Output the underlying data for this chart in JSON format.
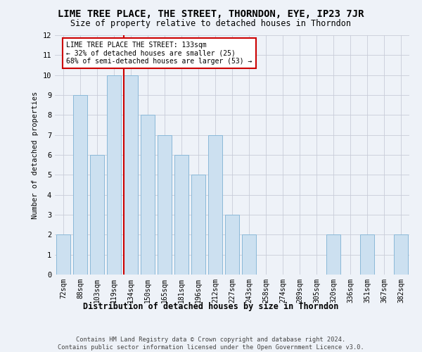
{
  "title": "LIME TREE PLACE, THE STREET, THORNDON, EYE, IP23 7JR",
  "subtitle": "Size of property relative to detached houses in Thorndon",
  "xlabel": "Distribution of detached houses by size in Thorndon",
  "ylabel": "Number of detached properties",
  "categories": [
    "72sqm",
    "88sqm",
    "103sqm",
    "119sqm",
    "134sqm",
    "150sqm",
    "165sqm",
    "181sqm",
    "196sqm",
    "212sqm",
    "227sqm",
    "243sqm",
    "258sqm",
    "274sqm",
    "289sqm",
    "305sqm",
    "320sqm",
    "336sqm",
    "351sqm",
    "367sqm",
    "382sqm"
  ],
  "values": [
    2,
    9,
    6,
    10,
    10,
    8,
    7,
    6,
    5,
    7,
    3,
    2,
    0,
    0,
    0,
    0,
    2,
    0,
    2,
    0,
    2
  ],
  "bar_color": "#cce0f0",
  "bar_edgecolor": "#8ab8d8",
  "red_line_index": 4,
  "annotation_line1": "LIME TREE PLACE THE STREET: 133sqm",
  "annotation_line2": "← 32% of detached houses are smaller (25)",
  "annotation_line3": "68% of semi-detached houses are larger (53) →",
  "annotation_box_edgecolor": "#cc0000",
  "ylim_max": 12,
  "grid_color": "#c8ccd8",
  "background_color": "#eef2f8",
  "footer_line1": "Contains HM Land Registry data © Crown copyright and database right 2024.",
  "footer_line2": "Contains public sector information licensed under the Open Government Licence v3.0."
}
